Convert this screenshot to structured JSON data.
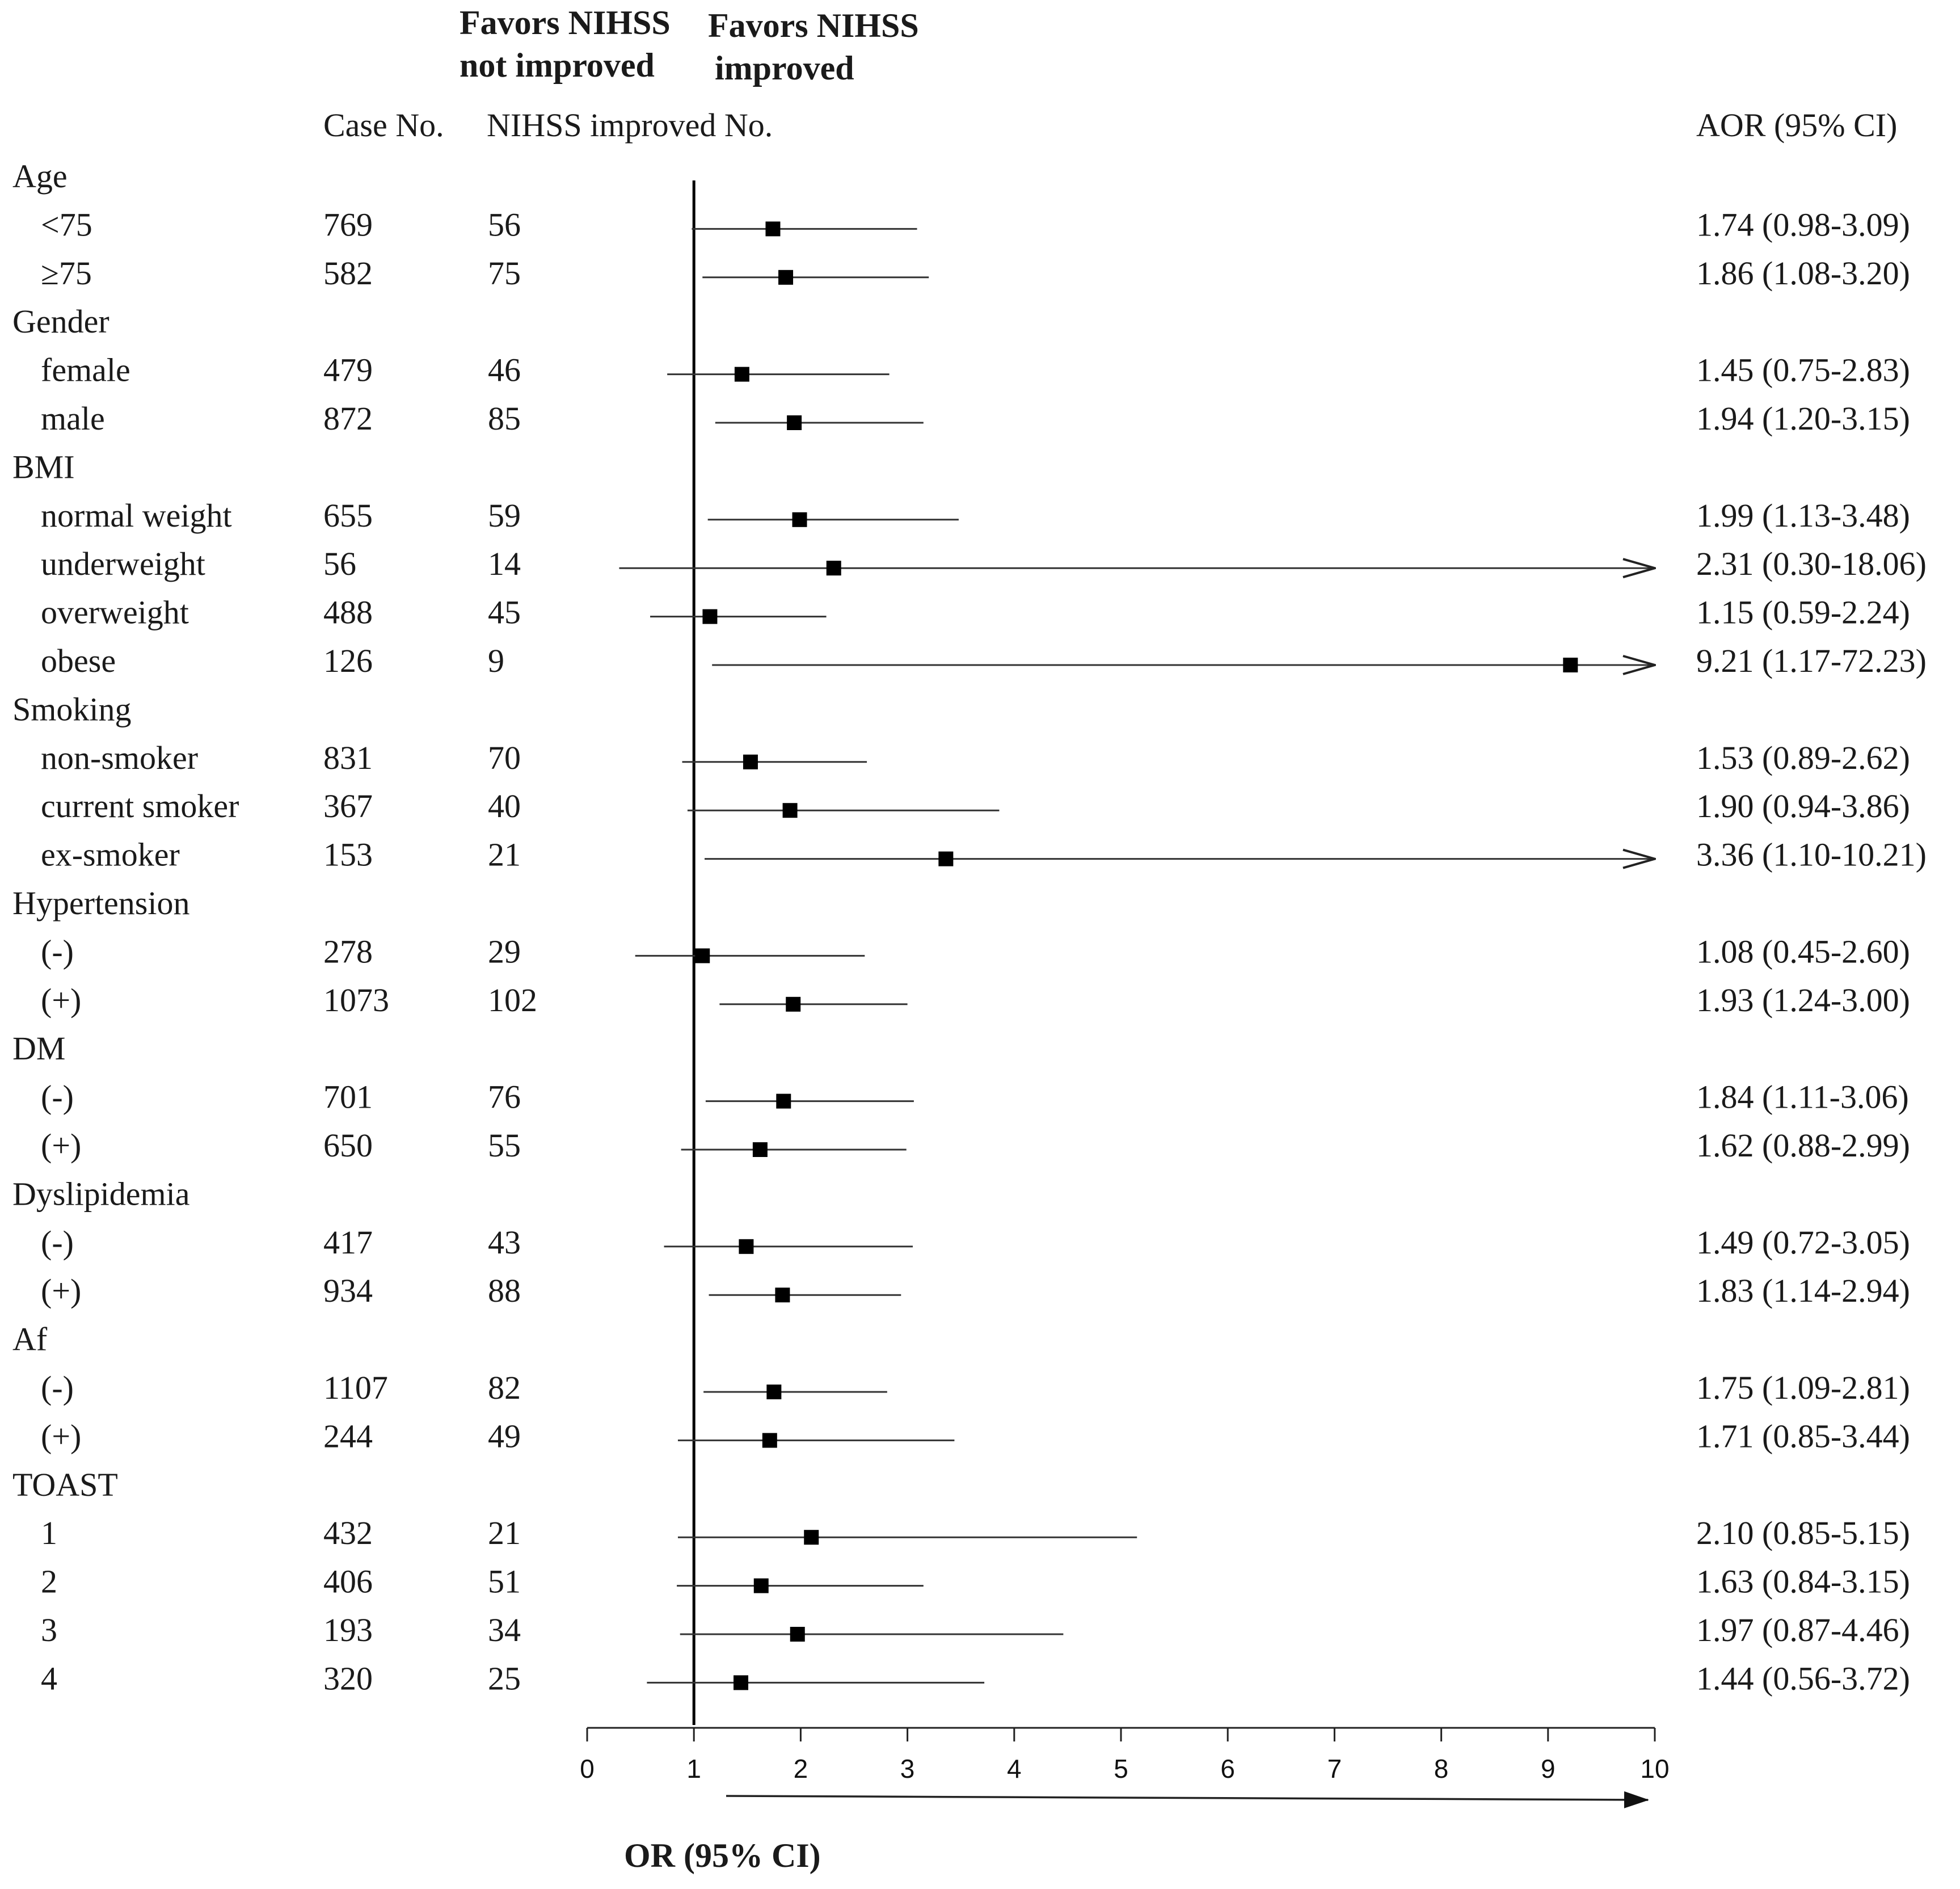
{
  "headers": {
    "favors_not_line1": "Favors NIHSS",
    "favors_not_line2": "not improved",
    "favors_imp_line1": "Favors NIHSS",
    "favors_imp_line2": "improved",
    "case_no": "Case No.",
    "improved_no": "NIHSS improved No.",
    "aor": "AOR (95% CI)"
  },
  "chart_data": {
    "type": "forest",
    "xlabel": "OR (95% CI)",
    "xlim": [
      0,
      10
    ],
    "xticks": [
      "0",
      "1",
      "2",
      "3",
      "4",
      "5",
      "6",
      "7",
      "8",
      "9",
      "10"
    ],
    "reference_line": 1,
    "rows": [
      {
        "label": "Age",
        "group": true
      },
      {
        "label": "<75",
        "cases": "769",
        "improved": "56",
        "or": 1.74,
        "lo": 0.98,
        "hi": 3.09,
        "text": "1.74 (0.98-3.09)"
      },
      {
        "label": "≥75",
        "cases": "582",
        "improved": "75",
        "or": 1.86,
        "lo": 1.08,
        "hi": 3.2,
        "text": "1.86 (1.08-3.20)"
      },
      {
        "label": "Gender",
        "group": true
      },
      {
        "label": "female",
        "cases": "479",
        "improved": "46",
        "or": 1.45,
        "lo": 0.75,
        "hi": 2.83,
        "text": "1.45 (0.75-2.83)"
      },
      {
        "label": "male",
        "cases": "872",
        "improved": "85",
        "or": 1.94,
        "lo": 1.2,
        "hi": 3.15,
        "text": "1.94 (1.20-3.15)"
      },
      {
        "label": "BMI",
        "group": true
      },
      {
        "label": "normal weight",
        "cases": "655",
        "improved": "59",
        "or": 1.99,
        "lo": 1.13,
        "hi": 3.48,
        "text": "1.99 (1.13-3.48)"
      },
      {
        "label": "underweight",
        "cases": "56",
        "improved": "14",
        "or": 2.31,
        "lo": 0.3,
        "hi": 18.06,
        "text": "2.31 (0.30-18.06)"
      },
      {
        "label": "overweight",
        "cases": "488",
        "improved": "45",
        "or": 1.15,
        "lo": 0.59,
        "hi": 2.24,
        "text": "1.15 (0.59-2.24)"
      },
      {
        "label": "obese",
        "cases": "126",
        "improved": "9",
        "or": 9.21,
        "lo": 1.17,
        "hi": 72.23,
        "text": "9.21 (1.17-72.23)"
      },
      {
        "label": "Smoking",
        "group": true
      },
      {
        "label": "non-smoker",
        "cases": "831",
        "improved": "70",
        "or": 1.53,
        "lo": 0.89,
        "hi": 2.62,
        "text": "1.53 (0.89-2.62)"
      },
      {
        "label": "current smoker",
        "cases": "367",
        "improved": "40",
        "or": 1.9,
        "lo": 0.94,
        "hi": 3.86,
        "text": "1.90 (0.94-3.86)"
      },
      {
        "label": "ex-smoker",
        "cases": "153",
        "improved": "21",
        "or": 3.36,
        "lo": 1.1,
        "hi": 10.21,
        "text": "3.36 (1.10-10.21)"
      },
      {
        "label": "Hypertension",
        "group": true
      },
      {
        "label": "(-)",
        "cases": "278",
        "improved": "29",
        "or": 1.08,
        "lo": 0.45,
        "hi": 2.6,
        "text": "1.08 (0.45-2.60)"
      },
      {
        "label": "(+)",
        "cases": "1073",
        "improved": "102",
        "or": 1.93,
        "lo": 1.24,
        "hi": 3.0,
        "text": "1.93 (1.24-3.00)"
      },
      {
        "label": "DM",
        "group": true
      },
      {
        "label": "(-)",
        "cases": "701",
        "improved": "76",
        "or": 1.84,
        "lo": 1.11,
        "hi": 3.06,
        "text": "1.84 (1.11-3.06)"
      },
      {
        "label": "(+)",
        "cases": "650",
        "improved": "55",
        "or": 1.62,
        "lo": 0.88,
        "hi": 2.99,
        "text": "1.62 (0.88-2.99)"
      },
      {
        "label": "Dyslipidemia",
        "group": true
      },
      {
        "label": "(-)",
        "cases": "417",
        "improved": "43",
        "or": 1.49,
        "lo": 0.72,
        "hi": 3.05,
        "text": "1.49 (0.72-3.05)"
      },
      {
        "label": "(+)",
        "cases": "934",
        "improved": "88",
        "or": 1.83,
        "lo": 1.14,
        "hi": 2.94,
        "text": "1.83 (1.14-2.94)"
      },
      {
        "label": "Af",
        "group": true
      },
      {
        "label": "(-)",
        "cases": "1107",
        "improved": "82",
        "or": 1.75,
        "lo": 1.09,
        "hi": 2.81,
        "text": "1.75 (1.09-2.81)"
      },
      {
        "label": "(+)",
        "cases": "244",
        "improved": "49",
        "or": 1.71,
        "lo": 0.85,
        "hi": 3.44,
        "text": "1.71 (0.85-3.44)"
      },
      {
        "label": "TOAST",
        "group": true
      },
      {
        "label": "1",
        "cases": "432",
        "improved": "21",
        "or": 2.1,
        "lo": 0.85,
        "hi": 5.15,
        "text": "2.10 (0.85-5.15)"
      },
      {
        "label": "2",
        "cases": "406",
        "improved": "51",
        "or": 1.63,
        "lo": 0.84,
        "hi": 3.15,
        "text": "1.63 (0.84-3.15)"
      },
      {
        "label": "3",
        "cases": "193",
        "improved": "34",
        "or": 1.97,
        "lo": 0.87,
        "hi": 4.46,
        "text": "1.97 (0.87-4.46)"
      },
      {
        "label": "4",
        "cases": "320",
        "improved": "25",
        "or": 1.44,
        "lo": 0.56,
        "hi": 3.72,
        "text": "1.44 (0.56-3.72)"
      }
    ]
  }
}
